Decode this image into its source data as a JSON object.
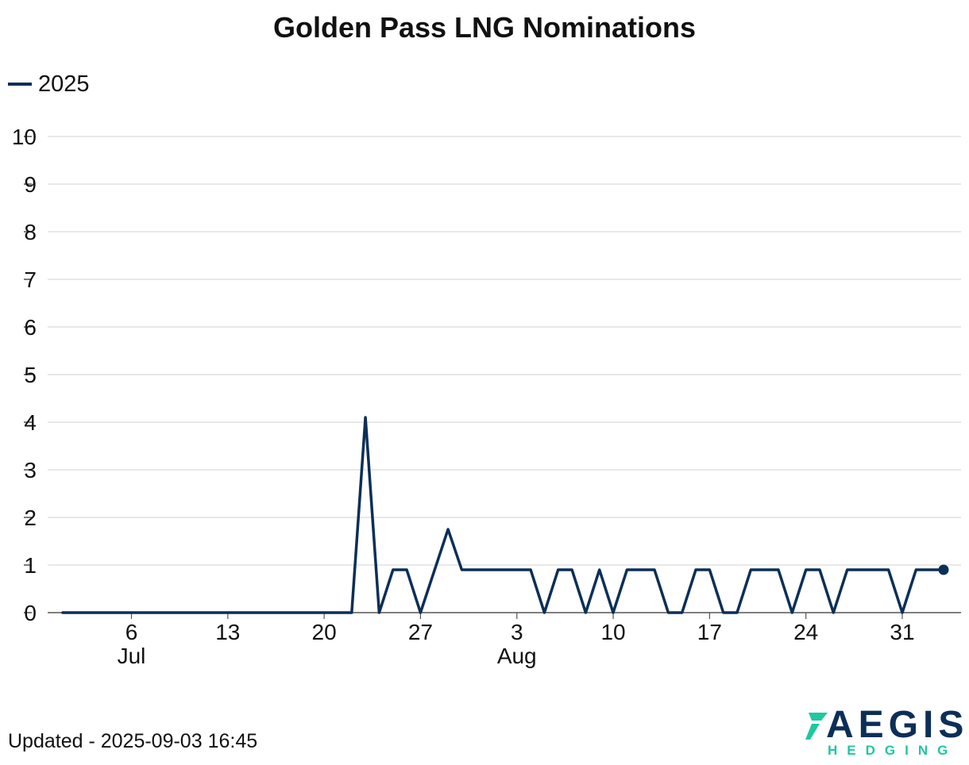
{
  "chart_data": {
    "type": "line",
    "title": "Golden Pass LNG Nominations",
    "xlabel": "",
    "ylabel": "",
    "ylim": [
      0,
      10
    ],
    "yticks": [
      "0",
      "1",
      "2",
      "3",
      "4",
      "5",
      "6",
      "7",
      "8",
      "9",
      "10"
    ],
    "x_ticks": [
      {
        "date": "2025-07-06",
        "day": "6",
        "month": "Jul"
      },
      {
        "date": "2025-07-13",
        "day": "13",
        "month": ""
      },
      {
        "date": "2025-07-20",
        "day": "20",
        "month": ""
      },
      {
        "date": "2025-07-27",
        "day": "27",
        "month": ""
      },
      {
        "date": "2025-08-03",
        "day": "3",
        "month": "Aug"
      },
      {
        "date": "2025-08-10",
        "day": "10",
        "month": ""
      },
      {
        "date": "2025-08-17",
        "day": "17",
        "month": ""
      },
      {
        "date": "2025-08-24",
        "day": "24",
        "month": ""
      },
      {
        "date": "2025-08-31",
        "day": "31",
        "month": ""
      }
    ],
    "grid": true,
    "legend_position": "top-left",
    "series": [
      {
        "name": "2025",
        "color": "#0b2f57",
        "points": [
          [
            "2025-07-01",
            0
          ],
          [
            "2025-07-02",
            0
          ],
          [
            "2025-07-03",
            0
          ],
          [
            "2025-07-04",
            0
          ],
          [
            "2025-07-05",
            0
          ],
          [
            "2025-07-06",
            0
          ],
          [
            "2025-07-07",
            0
          ],
          [
            "2025-07-08",
            0
          ],
          [
            "2025-07-09",
            0
          ],
          [
            "2025-07-10",
            0
          ],
          [
            "2025-07-11",
            0
          ],
          [
            "2025-07-12",
            0
          ],
          [
            "2025-07-13",
            0
          ],
          [
            "2025-07-14",
            0
          ],
          [
            "2025-07-15",
            0
          ],
          [
            "2025-07-16",
            0
          ],
          [
            "2025-07-17",
            0
          ],
          [
            "2025-07-18",
            0
          ],
          [
            "2025-07-19",
            0
          ],
          [
            "2025-07-20",
            0
          ],
          [
            "2025-07-21",
            0
          ],
          [
            "2025-07-22",
            0
          ],
          [
            "2025-07-23",
            4.1
          ],
          [
            "2025-07-24",
            0
          ],
          [
            "2025-07-25",
            0.9
          ],
          [
            "2025-07-26",
            0.9
          ],
          [
            "2025-07-27",
            0
          ],
          [
            "2025-07-29",
            1.75
          ],
          [
            "2025-07-30",
            0.9
          ],
          [
            "2025-07-31",
            0.9
          ],
          [
            "2025-08-01",
            0.9
          ],
          [
            "2025-08-02",
            0.9
          ],
          [
            "2025-08-03",
            0.9
          ],
          [
            "2025-08-04",
            0.9
          ],
          [
            "2025-08-05",
            0
          ],
          [
            "2025-08-06",
            0.9
          ],
          [
            "2025-08-07",
            0.9
          ],
          [
            "2025-08-08",
            0
          ],
          [
            "2025-08-09",
            0.9
          ],
          [
            "2025-08-10",
            0
          ],
          [
            "2025-08-11",
            0.9
          ],
          [
            "2025-08-12",
            0.9
          ],
          [
            "2025-08-13",
            0.9
          ],
          [
            "2025-08-14",
            0
          ],
          [
            "2025-08-15",
            0
          ],
          [
            "2025-08-16",
            0.9
          ],
          [
            "2025-08-17",
            0.9
          ],
          [
            "2025-08-18",
            0
          ],
          [
            "2025-08-19",
            0
          ],
          [
            "2025-08-20",
            0.9
          ],
          [
            "2025-08-21",
            0.9
          ],
          [
            "2025-08-22",
            0.9
          ],
          [
            "2025-08-23",
            0
          ],
          [
            "2025-08-24",
            0.9
          ],
          [
            "2025-08-25",
            0.9
          ],
          [
            "2025-08-26",
            0
          ],
          [
            "2025-08-27",
            0.9
          ],
          [
            "2025-08-28",
            0.9
          ],
          [
            "2025-08-29",
            0.9
          ],
          [
            "2025-08-30",
            0.9
          ],
          [
            "2025-08-31",
            0
          ],
          [
            "2025-09-01",
            0.9
          ],
          [
            "2025-09-02",
            0.9
          ],
          [
            "2025-09-03",
            0.9
          ]
        ]
      }
    ]
  },
  "footer": {
    "updated": "Updated - 2025-09-03 16:45"
  },
  "logo": {
    "main": "AEGIS",
    "sub": "HEDGING",
    "main_color": "#0b2f57",
    "accent_color": "#1fc8a0"
  },
  "legend": {
    "label": "2025"
  }
}
